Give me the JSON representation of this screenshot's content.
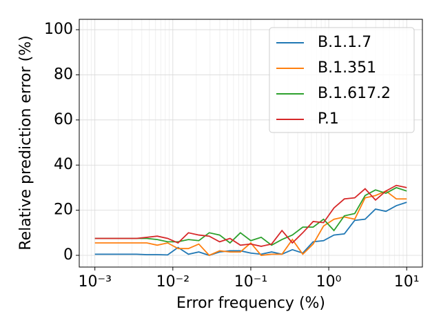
{
  "chart_data": {
    "type": "line",
    "xlabel": "Error frequency (%)",
    "ylabel": "Relative prediction error (%)",
    "x": [
      0.001,
      0.00136,
      0.00185,
      0.00251,
      0.00341,
      0.00464,
      0.00631,
      0.00858,
      0.01166,
      0.01585,
      0.02154,
      0.02929,
      0.03981,
      0.05412,
      0.07356,
      0.1,
      0.1359,
      0.1848,
      0.2512,
      0.3415,
      0.4642,
      0.631,
      0.8577,
      1.166,
      1.585,
      2.154,
      2.929,
      3.981,
      5.412,
      7.356,
      10
    ],
    "series": [
      {
        "name": "B.1.1.7",
        "color": "#1f77b4",
        "values": [
          0.5,
          0.5,
          0.5,
          0.5,
          0.5,
          0.3,
          0.3,
          0.2,
          3.5,
          0.5,
          1.5,
          0,
          1.5,
          2,
          2,
          1,
          0.5,
          1.5,
          0.5,
          2.5,
          1,
          6,
          6.5,
          9,
          9.5,
          15.5,
          16,
          20.5,
          19.5,
          22,
          23.5
        ]
      },
      {
        "name": "B.1.351",
        "color": "#ff7f0e",
        "values": [
          5.5,
          5.5,
          5.5,
          5.5,
          5.5,
          5.5,
          4.5,
          5.5,
          3,
          3,
          5,
          0,
          2,
          1.5,
          1.5,
          5.5,
          0,
          0.5,
          0.5,
          7,
          0.5,
          5,
          13,
          16,
          17,
          16,
          25.5,
          26.5,
          28.5,
          25,
          25
        ]
      },
      {
        "name": "B.1.617.2",
        "color": "#2ca02c",
        "values": [
          7.5,
          7.5,
          7.5,
          7.5,
          7.5,
          7.5,
          7,
          6,
          6,
          7,
          6.5,
          10,
          9,
          5.5,
          10,
          6.5,
          8,
          4.5,
          7,
          9,
          12.5,
          12.5,
          16,
          11,
          17.5,
          18.5,
          26.5,
          29,
          27.5,
          30,
          28.5
        ]
      },
      {
        "name": "P.1",
        "color": "#d62728",
        "values": [
          7.5,
          7.5,
          7.5,
          7.5,
          7.5,
          8,
          8.5,
          7.5,
          5.5,
          10,
          9,
          8.5,
          6,
          7.5,
          4.5,
          5,
          4,
          5,
          11,
          5.5,
          10,
          15,
          14.5,
          21,
          25,
          25.5,
          29.5,
          24.5,
          28.5,
          31,
          30
        ]
      }
    ],
    "xscale": "log",
    "xlim": [
      0.00063,
      15.9
    ],
    "xticks": [
      {
        "value": 0.001,
        "label": "10⁻³"
      },
      {
        "value": 0.01,
        "label": "10⁻²"
      },
      {
        "value": 0.1,
        "label": "10⁻¹"
      },
      {
        "value": 1,
        "label": "10⁰"
      },
      {
        "value": 10,
        "label": "10¹"
      }
    ],
    "ylim": [
      -5.2,
      104.6
    ],
    "yticks": [
      0,
      20,
      40,
      60,
      80,
      100
    ],
    "grid": true,
    "legend": "upper right"
  }
}
